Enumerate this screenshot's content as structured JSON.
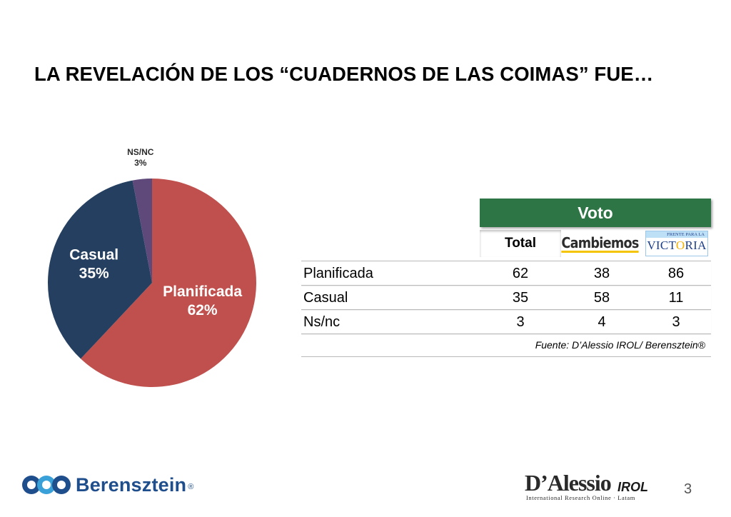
{
  "title": "LA REVELACIÓN DE LOS “CUADERNOS DE LAS COIMAS” FUE…",
  "chart_data": [
    {
      "type": "pie",
      "categories": [
        "Planificada",
        "Casual",
        "NS/NC"
      ],
      "values": [
        62,
        35,
        3
      ],
      "value_labels": [
        "62%",
        "35%",
        "3%"
      ],
      "colors": [
        "#c0504d",
        "#243f60",
        "#5f497a"
      ]
    },
    {
      "type": "table",
      "group_header": "Voto",
      "columns": [
        "Total",
        "Cambiemos",
        "FRENTE PARA LA VICTORIA"
      ],
      "rows": [
        {
          "label": "Planificada",
          "values": [
            "62",
            "38",
            "86"
          ]
        },
        {
          "label": "Casual",
          "values": [
            "35",
            "58",
            "11"
          ]
        },
        {
          "label": "Ns/nc",
          "values": [
            "3",
            "4",
            "3"
          ]
        }
      ],
      "header_color": "#2e7546"
    }
  ],
  "source": "Fuente: D’Alessio IROL/ Berensztein®",
  "logos": {
    "cambiemos": "Cambiemos",
    "victoria_top": "FRENTE PARA LA",
    "victoria_main_a": "VICT",
    "victoria_main_o": "O",
    "victoria_main_b": "RIA",
    "berensztein": "Berensztein",
    "berensztein_reg": "®",
    "dalessio": "D’Alessio",
    "dalessio_irol": "IROL",
    "dalessio_sub": "International Research Online · Latam"
  },
  "page_number": "3"
}
